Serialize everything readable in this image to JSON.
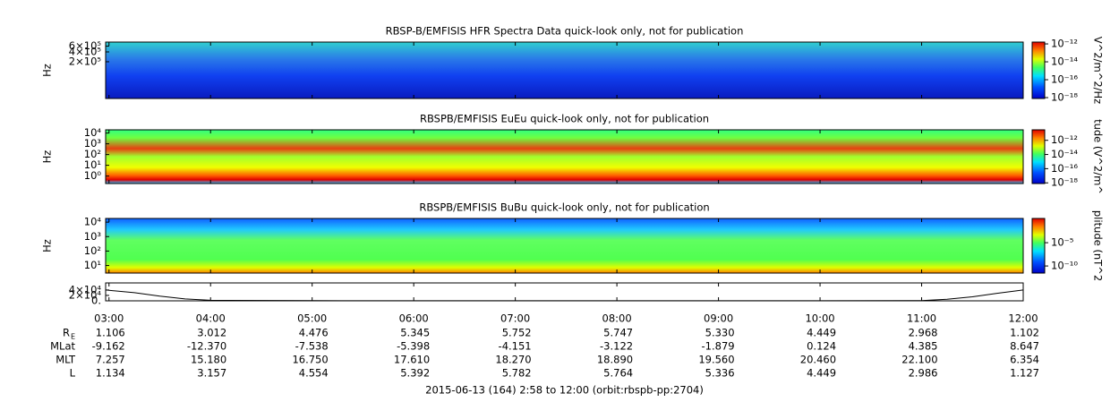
{
  "chart_data": [
    {
      "type": "spectrogram",
      "title": "RBSP-B/EMFISIS  HFR Spectra Data quick-look only, not for publication",
      "ylabel": "Hz",
      "log_y": true,
      "ylim": [
        15000,
        800000
      ],
      "yticks": [
        {
          "value": 200000,
          "label": "2×10⁵"
        },
        {
          "value": 400000,
          "label": "4×10⁵"
        },
        {
          "value": 600000,
          "label": "6×10⁵"
        }
      ],
      "colorbar_label": "V^2/m^2/Hz",
      "clim": [
        8e-19,
        1.6e-12
      ],
      "cticks": [
        {
          "value": 1e-18,
          "label": "10⁻¹⁸"
        },
        {
          "value": 1e-16,
          "label": "10⁻¹⁶"
        },
        {
          "value": 1e-14,
          "label": "10⁻¹⁴"
        },
        {
          "value": 1e-12,
          "label": "10⁻¹²"
        }
      ]
    },
    {
      "type": "spectrogram",
      "title": "RBSPB/EMFISIS  EuEu quick-look only, not for publication",
      "ylabel": "Hz",
      "log_y": true,
      "ylim": [
        0.2,
        20000
      ],
      "yticks": [
        {
          "value": 1,
          "label": "10⁰"
        },
        {
          "value": 10,
          "label": "10¹"
        },
        {
          "value": 100,
          "label": "10²"
        },
        {
          "value": 1000,
          "label": "10³"
        },
        {
          "value": 10000,
          "label": "10⁴"
        }
      ],
      "colorbar_label": "tude (V^2/m^",
      "clim": [
        8e-19,
        3e-11
      ],
      "cticks": [
        {
          "value": 1e-18,
          "label": "10⁻¹⁸"
        },
        {
          "value": 1e-16,
          "label": "10⁻¹⁶"
        },
        {
          "value": 1e-14,
          "label": "10⁻¹⁴"
        },
        {
          "value": 1e-12,
          "label": "10⁻¹²"
        }
      ]
    },
    {
      "type": "spectrogram",
      "title": "RBSPB/EMFISIS  BuBu quick-look only, not for publication",
      "ylabel": "Hz",
      "log_y": true,
      "ylim": [
        3,
        18000
      ],
      "yticks": [
        {
          "value": 10,
          "label": "10¹"
        },
        {
          "value": 100,
          "label": "10²"
        },
        {
          "value": 1000,
          "label": "10³"
        },
        {
          "value": 10000,
          "label": "10⁴"
        }
      ],
      "colorbar_label": "plitude (nT^2",
      "clim": [
        3e-12,
        1.6
      ],
      "cticks": [
        {
          "value": 1e-10,
          "label": "10⁻¹⁰"
        },
        {
          "value": 1e-05,
          "label": "10⁻⁵"
        }
      ]
    },
    {
      "type": "line",
      "ylim": [
        0,
        66000
      ],
      "yticks": [
        {
          "value": 0,
          "label": "0."
        },
        {
          "value": 20000,
          "label": "2×10⁴"
        },
        {
          "value": 40000,
          "label": "4×10⁴"
        }
      ],
      "x": [
        2.967,
        3.25,
        3.5,
        3.75,
        4,
        5,
        6,
        7,
        8,
        9,
        10,
        11,
        11.25,
        11.5,
        11.75,
        12
      ],
      "values": [
        40000,
        30000,
        17000,
        7000,
        2000,
        500,
        300,
        300,
        300,
        300,
        300,
        1000,
        6000,
        15000,
        28000,
        40000
      ],
      "color": "#000000",
      "xlim": [
        2.967,
        12
      ],
      "xticks": [
        {
          "value": 3,
          "label": "03:00"
        },
        {
          "value": 4,
          "label": "04:00"
        },
        {
          "value": 5,
          "label": "05:00"
        },
        {
          "value": 6,
          "label": "06:00"
        },
        {
          "value": 7,
          "label": "07:00"
        },
        {
          "value": 8,
          "label": "08:00"
        },
        {
          "value": 9,
          "label": "09:00"
        },
        {
          "value": 10,
          "label": "10:00"
        },
        {
          "value": 11,
          "label": "11:00"
        },
        {
          "value": 12,
          "label": "12:00"
        }
      ],
      "ephemeris": [
        {
          "label": "R",
          "subscript": "E",
          "values": [
            "1.106",
            "3.012",
            "4.476",
            "5.345",
            "5.752",
            "5.747",
            "5.330",
            "4.449",
            "2.968",
            "1.102"
          ]
        },
        {
          "label": "MLat",
          "values": [
            "-9.162",
            "-12.370",
            "-7.538",
            "-5.398",
            "-4.151",
            "-3.122",
            "-1.879",
            "0.124",
            "4.385",
            "8.647"
          ]
        },
        {
          "label": "MLT",
          "values": [
            "7.257",
            "15.180",
            "16.750",
            "17.610",
            "18.270",
            "18.890",
            "19.560",
            "20.460",
            "22.100",
            "6.354"
          ]
        },
        {
          "label": "L",
          "values": [
            "1.134",
            "3.157",
            "4.554",
            "5.392",
            "5.782",
            "5.764",
            "5.336",
            "4.449",
            "2.986",
            "1.127"
          ]
        }
      ],
      "xlabel": "2015-06-13 (164) 2:58 to 12:00 (orbit:rbspb-pp:2704)"
    }
  ]
}
